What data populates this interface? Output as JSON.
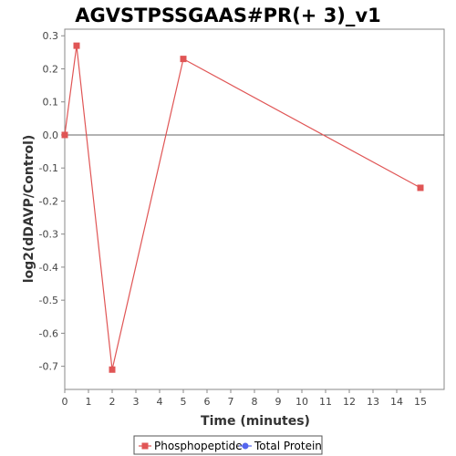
{
  "chart_data": {
    "type": "line",
    "title": "AGVSTPSSGAAS#PR(+ 3)_v1",
    "xlabel": "Time (minutes)",
    "ylabel": "log2(dDAVP/Control)",
    "xlim": [
      0,
      16
    ],
    "ylim": [
      -0.77,
      0.32
    ],
    "xticks": [
      0,
      1,
      2,
      3,
      4,
      5,
      6,
      7,
      8,
      9,
      10,
      11,
      12,
      13,
      14,
      15
    ],
    "xtick_labels": [
      "0",
      "1",
      "2",
      "3",
      "4",
      "5",
      "6",
      "7",
      "8",
      "9",
      "10",
      "11",
      "12",
      "13",
      "14",
      "15"
    ],
    "yticks": [
      0.3,
      0.2,
      0.1,
      0.0,
      -0.1,
      -0.2,
      -0.3,
      -0.4,
      -0.5,
      -0.6,
      -0.7
    ],
    "ytick_labels": [
      "0.3",
      "0.2",
      "0.1",
      "0.0",
      "-0.1",
      "-0.2",
      "-0.3",
      "-0.4",
      "-0.5",
      "-0.6",
      "-0.7"
    ],
    "grid": false,
    "zero_line": true,
    "legend_position": "bottom",
    "series": [
      {
        "name": "Phosphopeptide",
        "color": "#e05555",
        "marker": "square",
        "x": [
          0,
          0.5,
          2,
          5,
          15
        ],
        "y": [
          0.0,
          0.27,
          -0.71,
          0.23,
          -0.16
        ]
      },
      {
        "name": "Total Protein",
        "color": "#5566ee",
        "marker": "circle",
        "x": [],
        "y": []
      }
    ]
  }
}
